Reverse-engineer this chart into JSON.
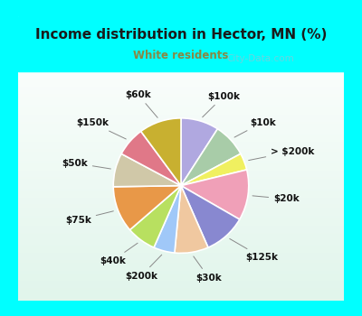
{
  "title": "Income distribution in Hector, MN (%)",
  "subtitle": "White residents",
  "title_color": "#1a1a1a",
  "subtitle_color": "#888844",
  "watermark": "City-Data.com",
  "labels": [
    "$100k",
    "$10k",
    "> $200k",
    "$20k",
    "$125k",
    "$30k",
    "$200k",
    "$40k",
    "$75k",
    "$50k",
    "$150k",
    "$60k"
  ],
  "values": [
    9,
    8,
    4,
    12,
    10,
    8,
    5,
    7,
    11,
    8,
    7,
    10
  ],
  "colors": [
    "#b0a8e0",
    "#a8cca8",
    "#f0f060",
    "#f0a0b8",
    "#8888d0",
    "#f0c8a0",
    "#a0c8f8",
    "#b8e060",
    "#e89848",
    "#d0c8a8",
    "#e07888",
    "#c8b030"
  ],
  "startangle": 90,
  "border_color": "#00ffff",
  "border_width": 0.05,
  "chart_bg_top_color": "#e8f8f0",
  "chart_bg_bottom_color": "#f8fffc",
  "label_font_size": 7.5,
  "label_color": "#111111",
  "line_color": "#888888",
  "watermark_color": "#aabbcc",
  "watermark_alpha": 0.6
}
